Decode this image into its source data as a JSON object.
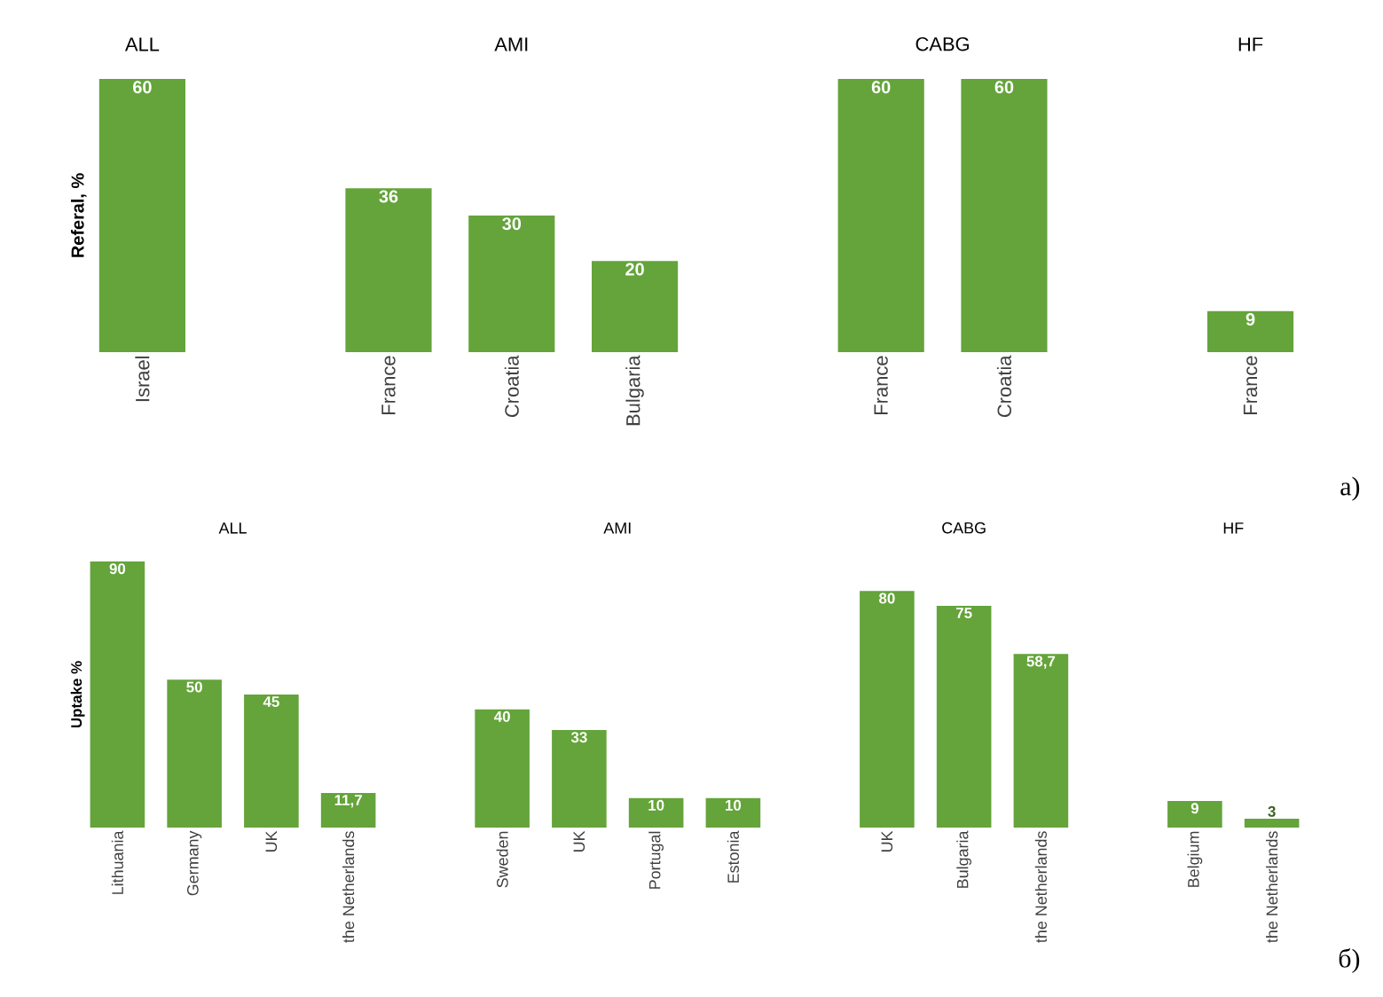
{
  "chart_data": [
    {
      "type": "bar",
      "ylabel": "Referal, %",
      "categories": [
        "Israel",
        null,
        "France",
        "Croatia",
        "Bulgaria",
        null,
        "France",
        "Croatia",
        null,
        "France"
      ],
      "series": [
        {
          "color": "#64a43a",
          "values": [
            60,
            null,
            36,
            30,
            20,
            null,
            60,
            60,
            null,
            9
          ],
          "value_labels": [
            "60",
            null,
            "36",
            "30",
            "20",
            null,
            "60",
            "60",
            null,
            "9"
          ]
        }
      ],
      "annotations": [
        "ALL",
        "AMI",
        "CABG",
        "HF",
        "a)"
      ]
    },
    {
      "type": "bar",
      "ylabel": "Uptake %",
      "categories": [
        "Lithuania",
        "Germany",
        "UK",
        "the Netherlands",
        null,
        "Sweden",
        "UK",
        "Portugal",
        "Estonia",
        null,
        "UK",
        "Bulgaria",
        "the Netherlands",
        null,
        "Belgium",
        "the Netherlands"
      ],
      "series": [
        {
          "color": "#64a43a",
          "values": [
            90,
            50,
            45,
            11.7,
            null,
            40,
            33,
            10,
            10,
            null,
            80,
            75,
            58.7,
            null,
            9,
            3
          ],
          "value_labels": [
            "90",
            "50",
            "45",
            "11,7",
            null,
            "40",
            "33",
            "10",
            "10",
            null,
            "80",
            "75",
            "58,7",
            null,
            "9",
            "3"
          ]
        }
      ],
      "annotations": [
        "ALL",
        "AMI",
        "CABG",
        "HF",
        "б)"
      ]
    }
  ]
}
